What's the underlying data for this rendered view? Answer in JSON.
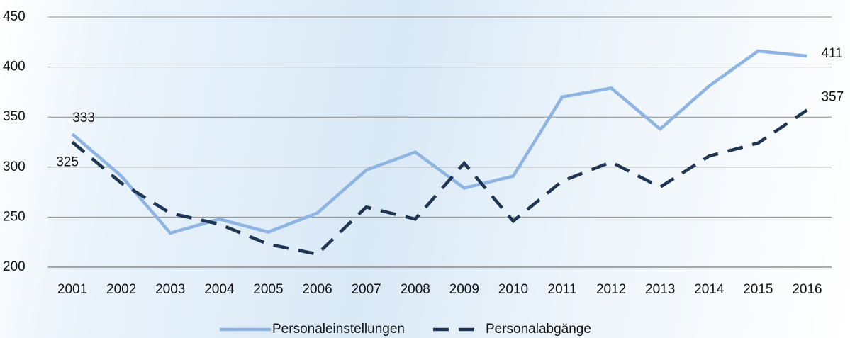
{
  "chart_data": {
    "type": "line",
    "categories": [
      "2001",
      "2002",
      "2003",
      "2004",
      "2005",
      "2006",
      "2007",
      "2008",
      "2009",
      "2010",
      "2011",
      "2012",
      "2013",
      "2014",
      "2015",
      "2016"
    ],
    "series": [
      {
        "name": "Personaleinstellungen",
        "color": "#8eb4e3",
        "dash": false,
        "values": [
          333,
          291,
          234,
          248,
          235,
          254,
          297,
          315,
          279,
          291,
          370,
          379,
          338,
          381,
          416,
          411
        ]
      },
      {
        "name": "Personalabgänge",
        "color": "#1f3552",
        "dash": true,
        "values": [
          325,
          284,
          254,
          243,
          223,
          213,
          260,
          248,
          304,
          246,
          286,
          305,
          280,
          311,
          324,
          357
        ]
      }
    ],
    "ylim": [
      200,
      450
    ],
    "yticks": [
      200,
      250,
      300,
      350,
      400,
      450
    ],
    "grid": true,
    "legend": "bottom"
  }
}
